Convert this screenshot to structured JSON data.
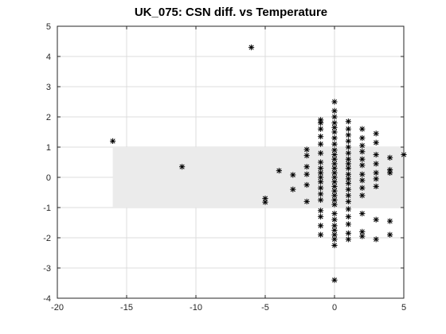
{
  "chart_data": {
    "type": "scatter",
    "title": "UK_075: CSN diff. vs Temperature",
    "xlabel": "",
    "ylabel": "",
    "xlim": [
      -20,
      5
    ],
    "ylim": [
      -4,
      5
    ],
    "xticks": [
      "-20",
      "-15",
      "-10",
      "-5",
      "0",
      "5"
    ],
    "yticks": [
      "-4",
      "-3",
      "-2",
      "-1",
      "0",
      "1",
      "2",
      "3",
      "4",
      "5"
    ],
    "grid": true,
    "marker": "asterisk",
    "marker_color": "#000000",
    "band": {
      "x": [
        -16,
        5
      ],
      "y": [
        -1,
        1
      ],
      "color": "#ebebeb"
    },
    "series": [
      {
        "points": [
          [
            -16,
            1.2
          ],
          [
            -11,
            0.35
          ],
          [
            -6,
            4.3
          ],
          [
            -5,
            -0.7
          ],
          [
            -5,
            -0.82
          ],
          [
            -4,
            0.22
          ],
          [
            -3,
            0.08
          ],
          [
            -3,
            -0.4
          ],
          [
            -2,
            0.92
          ],
          [
            -2,
            0.72
          ],
          [
            -2,
            0.35
          ],
          [
            -2,
            0.1
          ],
          [
            -2,
            -0.25
          ],
          [
            -2,
            -0.8
          ],
          [
            -1,
            1.9
          ],
          [
            -1,
            1.8
          ],
          [
            -1,
            1.6
          ],
          [
            -1,
            1.35
          ],
          [
            -1,
            1.1
          ],
          [
            -1,
            0.8
          ],
          [
            -1,
            0.5
          ],
          [
            -1,
            0.3
          ],
          [
            -1,
            0.15
          ],
          [
            -1,
            0.0
          ],
          [
            -1,
            -0.15
          ],
          [
            -1,
            -0.35
          ],
          [
            -1,
            -0.55
          ],
          [
            -1,
            -0.75
          ],
          [
            -1,
            -1.1
          ],
          [
            -1,
            -1.3
          ],
          [
            -1,
            -1.6
          ],
          [
            -1,
            -1.9
          ],
          [
            0,
            2.5
          ],
          [
            0,
            2.2
          ],
          [
            0,
            2.0
          ],
          [
            0,
            1.8
          ],
          [
            0,
            1.65
          ],
          [
            0,
            1.5
          ],
          [
            0,
            1.3
          ],
          [
            0,
            1.1
          ],
          [
            0,
            0.9
          ],
          [
            0,
            0.75
          ],
          [
            0,
            0.6
          ],
          [
            0,
            0.45
          ],
          [
            0,
            0.3
          ],
          [
            0,
            0.15
          ],
          [
            0,
            0.0
          ],
          [
            0,
            -0.15
          ],
          [
            0,
            -0.3
          ],
          [
            0,
            -0.45
          ],
          [
            0,
            -0.6
          ],
          [
            0,
            -0.75
          ],
          [
            0,
            -0.9
          ],
          [
            0,
            -1.2
          ],
          [
            0,
            -1.4
          ],
          [
            0,
            -1.6
          ],
          [
            0,
            -1.75
          ],
          [
            0,
            -1.9
          ],
          [
            0,
            -2.05
          ],
          [
            0,
            -2.25
          ],
          [
            0,
            -3.4
          ],
          [
            1,
            1.85
          ],
          [
            1,
            1.6
          ],
          [
            1,
            1.4
          ],
          [
            1,
            1.2
          ],
          [
            1,
            1.0
          ],
          [
            1,
            0.8
          ],
          [
            1,
            0.6
          ],
          [
            1,
            0.45
          ],
          [
            1,
            0.3
          ],
          [
            1,
            0.1
          ],
          [
            1,
            -0.05
          ],
          [
            1,
            -0.2
          ],
          [
            1,
            -0.4
          ],
          [
            1,
            -0.6
          ],
          [
            1,
            -0.8
          ],
          [
            1,
            -1.05
          ],
          [
            1,
            -1.3
          ],
          [
            1,
            -1.55
          ],
          [
            1,
            -1.85
          ],
          [
            1,
            -2.05
          ],
          [
            2,
            1.6
          ],
          [
            2,
            1.3
          ],
          [
            2,
            1.05
          ],
          [
            2,
            0.85
          ],
          [
            2,
            0.6
          ],
          [
            2,
            0.4
          ],
          [
            2,
            0.1
          ],
          [
            2,
            -0.1
          ],
          [
            2,
            -0.35
          ],
          [
            2,
            -0.6
          ],
          [
            2,
            -1.2
          ],
          [
            2,
            -1.8
          ],
          [
            2,
            -1.95
          ],
          [
            3,
            1.45
          ],
          [
            3,
            1.15
          ],
          [
            3,
            0.75
          ],
          [
            3,
            0.45
          ],
          [
            3,
            0.15
          ],
          [
            3,
            -0.05
          ],
          [
            3,
            -0.3
          ],
          [
            3,
            -1.4
          ],
          [
            3,
            -2.05
          ],
          [
            4,
            0.65
          ],
          [
            4,
            0.25
          ],
          [
            4,
            0.15
          ],
          [
            4,
            -1.45
          ],
          [
            4,
            -1.9
          ],
          [
            5,
            0.75
          ]
        ]
      }
    ]
  }
}
